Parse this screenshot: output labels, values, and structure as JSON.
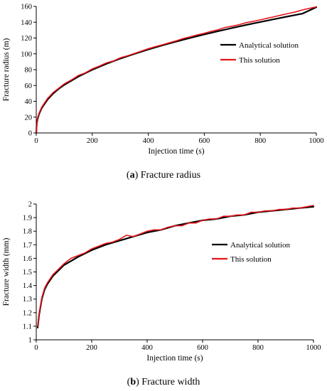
{
  "chart_data": [
    {
      "type": "line",
      "caption_letter": "a",
      "caption_text": "Fracture radius",
      "xlabel": "Injection time (s)",
      "ylabel": "Fracture radius (m)",
      "xlim": [
        0,
        1000
      ],
      "ylim": [
        0,
        160
      ],
      "xticks": [
        0,
        200,
        400,
        600,
        800,
        1000
      ],
      "yticks": [
        0,
        20,
        40,
        60,
        80,
        100,
        120,
        140,
        160
      ],
      "ytick_labels": [
        "0",
        "20",
        "40",
        "60",
        "80",
        "100",
        "120",
        "140",
        "160"
      ],
      "grid": false,
      "legend_position": "right",
      "series": [
        {
          "name": "Analytical solution",
          "color": "#000000",
          "x": [
            0,
            2,
            5,
            10,
            20,
            40,
            60,
            80,
            100,
            150,
            200,
            250,
            300,
            350,
            400,
            450,
            500,
            550,
            600,
            650,
            700,
            750,
            800,
            850,
            900,
            950,
            1000
          ],
          "y": [
            0,
            12.2,
            17.9,
            23.9,
            31.8,
            42.2,
            49.6,
            55.7,
            60.8,
            71.2,
            79.9,
            87.3,
            94.0,
            100.0,
            105.5,
            110.7,
            115.6,
            120.2,
            124.6,
            128.7,
            132.8,
            136.6,
            140.3,
            143.9,
            147.4,
            150.8,
            159.0
          ]
        },
        {
          "name": "This solution",
          "color": "#e8141b",
          "x": [
            0,
            5,
            10,
            20,
            40,
            60,
            80,
            100,
            125,
            150,
            175,
            200,
            225,
            250,
            275,
            300,
            325,
            350,
            375,
            400,
            425,
            450,
            475,
            500,
            525,
            550,
            575,
            600,
            625,
            650,
            675,
            700,
            725,
            750,
            775,
            800,
            825,
            850,
            875,
            900,
            925,
            950,
            975,
            1000
          ],
          "y": [
            1,
            19.5,
            25,
            33,
            43.5,
            51,
            56.5,
            62,
            67,
            72.5,
            76,
            81,
            84.5,
            88.5,
            91,
            95,
            97.5,
            100.5,
            103.5,
            106.5,
            109,
            111.5,
            114,
            116.5,
            119.5,
            121.5,
            124,
            126,
            128.5,
            130.5,
            133.5,
            135,
            137,
            139.5,
            141,
            143,
            145,
            147,
            149,
            151,
            153,
            155.5,
            157.5,
            159.5
          ]
        }
      ]
    },
    {
      "type": "line",
      "caption_letter": "b",
      "caption_text": "Fracture width",
      "xlabel": "Injection time (s)",
      "ylabel": "Fracture width (mm)",
      "xlim": [
        0,
        1000
      ],
      "ylim": [
        1,
        2
      ],
      "xticks": [
        0,
        200,
        400,
        600,
        800,
        1000
      ],
      "yticks": [
        1,
        1.1,
        1.2,
        1.3,
        1.4,
        1.5,
        1.6,
        1.7,
        1.8,
        1.9,
        2
      ],
      "ytick_labels": [
        "1",
        "1.1",
        "1.2",
        "1.3",
        "1.4",
        "1.5",
        "1.6",
        "1.7",
        "1.8",
        "1.9",
        "2"
      ],
      "grid": false,
      "legend_position": "right",
      "series": [
        {
          "name": "Analytical solution",
          "color": "#000000",
          "x": [
            5,
            10,
            20,
            30,
            40,
            60,
            80,
            100,
            150,
            200,
            250,
            300,
            350,
            400,
            450,
            500,
            550,
            600,
            650,
            700,
            750,
            800,
            850,
            900,
            950,
            1000
          ],
          "y": [
            1.09,
            1.18,
            1.3,
            1.37,
            1.41,
            1.47,
            1.51,
            1.55,
            1.61,
            1.66,
            1.7,
            1.73,
            1.76,
            1.79,
            1.81,
            1.84,
            1.86,
            1.88,
            1.89,
            1.91,
            1.92,
            1.94,
            1.95,
            1.96,
            1.97,
            1.98
          ]
        },
        {
          "name": "This solution",
          "color": "#e8141b",
          "x": [
            5,
            10,
            20,
            30,
            40,
            60,
            80,
            100,
            125,
            150,
            175,
            200,
            225,
            250,
            275,
            300,
            325,
            350,
            375,
            400,
            425,
            450,
            475,
            500,
            525,
            550,
            575,
            600,
            625,
            650,
            675,
            700,
            725,
            750,
            775,
            800,
            825,
            850,
            875,
            900,
            925,
            950,
            975,
            1000
          ],
          "y": [
            1.1,
            1.19,
            1.31,
            1.38,
            1.42,
            1.48,
            1.52,
            1.56,
            1.6,
            1.62,
            1.64,
            1.67,
            1.69,
            1.71,
            1.72,
            1.74,
            1.77,
            1.76,
            1.78,
            1.8,
            1.81,
            1.81,
            1.83,
            1.84,
            1.84,
            1.86,
            1.86,
            1.88,
            1.89,
            1.89,
            1.91,
            1.91,
            1.92,
            1.92,
            1.94,
            1.94,
            1.95,
            1.95,
            1.96,
            1.96,
            1.97,
            1.97,
            1.98,
            1.99
          ]
        }
      ]
    }
  ]
}
